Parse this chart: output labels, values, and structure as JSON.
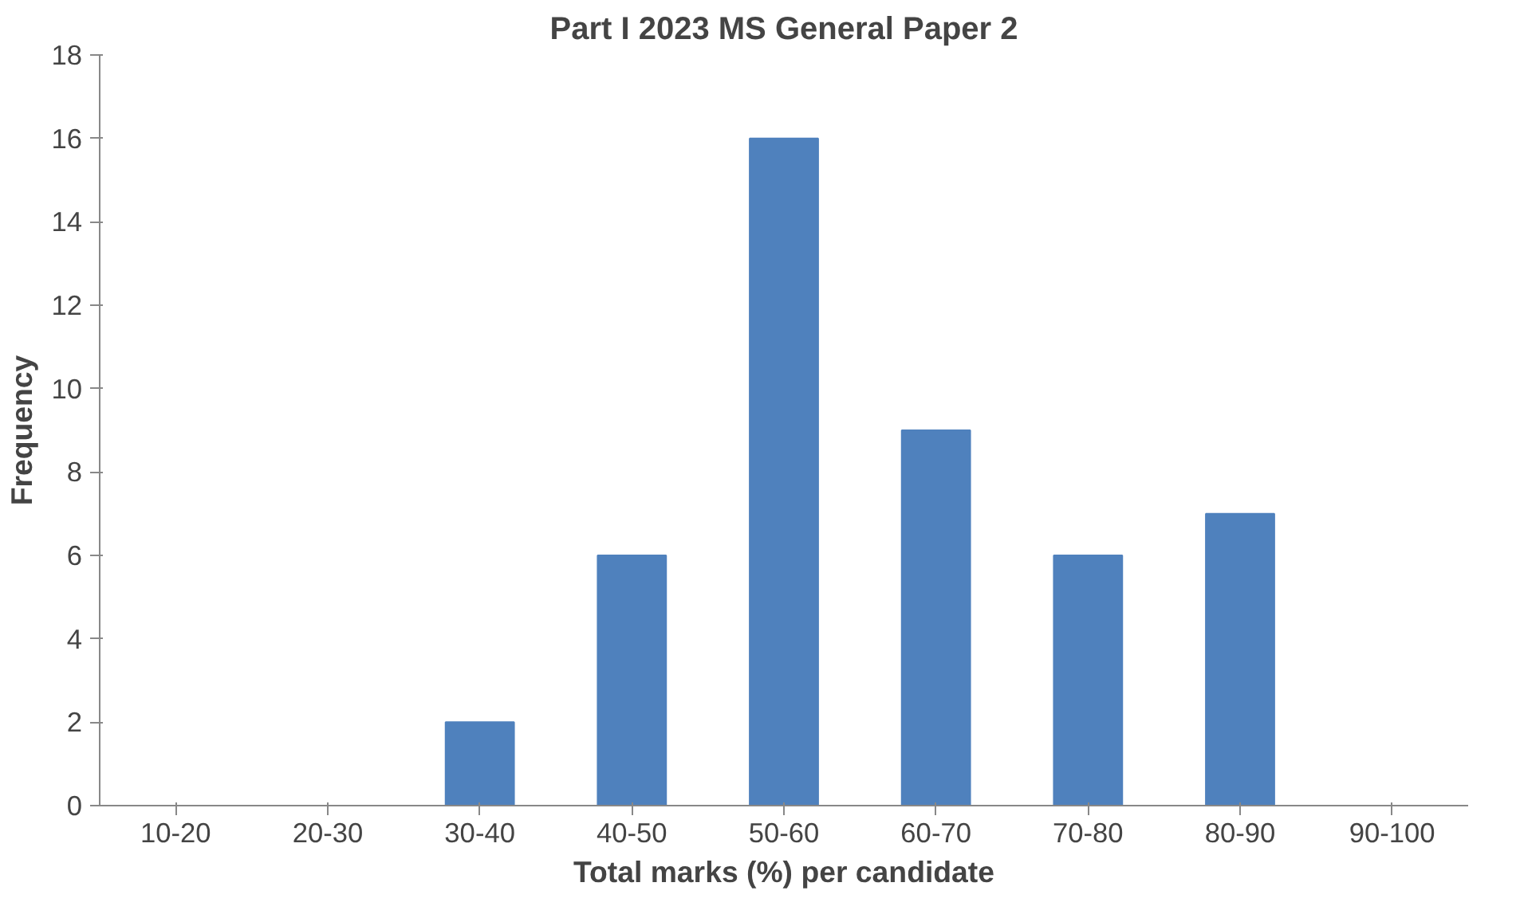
{
  "chart_data": {
    "type": "bar",
    "title": "Part I 2023 MS General Paper 2",
    "xlabel": "Total marks (%) per candidate",
    "ylabel": "Frequency",
    "categories": [
      "10-20",
      "20-30",
      "30-40",
      "40-50",
      "50-60",
      "60-70",
      "70-80",
      "80-90",
      "90-100"
    ],
    "values": [
      0,
      0,
      2,
      6,
      16,
      9,
      6,
      7,
      0
    ],
    "color": "#4f81bd",
    "ylim": [
      0,
      18
    ],
    "yticks": [
      0,
      2,
      4,
      6,
      8,
      10,
      12,
      14,
      16,
      18
    ]
  }
}
